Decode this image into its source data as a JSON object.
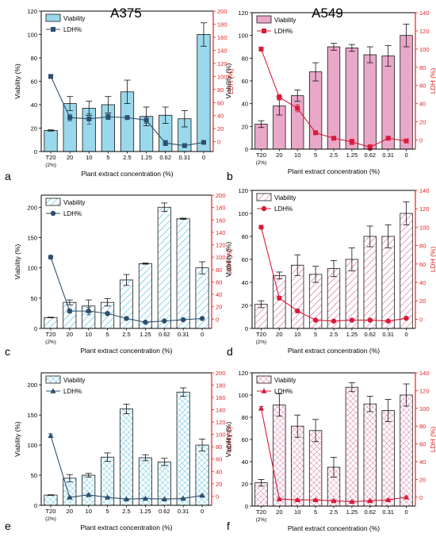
{
  "figure": {
    "column_titles": [
      "A375",
      "A549"
    ],
    "colors": {
      "viability_blue": "#9ad9ec",
      "viability_pink": "#e9a8c8",
      "ldh_blue": "#2e4f6e",
      "ldh_red": "#d81b3a",
      "axis_red": "#e8201f",
      "bar_edge": "#1a1a1a"
    }
  },
  "chart_data": [
    {
      "panel": "a",
      "type": "bar",
      "cell_line": "A375",
      "categories": [
        "T20\n(2%)",
        "20",
        "10",
        "5",
        "2.5",
        "1.25",
        "0.62",
        "0.31",
        "0"
      ],
      "xlabel": "Plant extract concentration (%)",
      "ylabel": "Viability (%)",
      "y2label": "LDH (%)",
      "ylim": [
        0,
        120
      ],
      "yticks": [
        0,
        20,
        40,
        60,
        80,
        100,
        120
      ],
      "y2lim": [
        -15,
        200
      ],
      "y2ticks": [
        0,
        20,
        40,
        60,
        80,
        100,
        120,
        140,
        160,
        180,
        200
      ],
      "legend": "top-left",
      "pattern": "solid",
      "series": [
        {
          "name": "Viability",
          "values": [
            18,
            41,
            37,
            40,
            51,
            30,
            31,
            28,
            100
          ],
          "errors": [
            0.5,
            6,
            6,
            7,
            10,
            8,
            7,
            7,
            10
          ]
        },
        {
          "name": "LDH%",
          "values": [
            100,
            37,
            35,
            38,
            37,
            33,
            -2,
            -6,
            -1
          ],
          "errors": [
            3,
            5,
            8,
            4,
            3,
            5,
            4,
            3,
            2
          ],
          "marker": "square"
        }
      ]
    },
    {
      "panel": "b",
      "type": "bar",
      "cell_line": "A549",
      "categories": [
        "T20\n(2%)",
        "20",
        "10",
        "5",
        "2.5",
        "1.25",
        "0.62",
        "0.31",
        "0"
      ],
      "xlabel": "Plant extract concentration (%)",
      "ylabel": "Viability (%)",
      "y2label": "LDH (%)",
      "ylim": [
        0,
        120
      ],
      "yticks": [
        0,
        20,
        40,
        60,
        80,
        100,
        120
      ],
      "y2lim": [
        -10,
        140
      ],
      "y2ticks": [
        0,
        20,
        40,
        60,
        80,
        100,
        120,
        140
      ],
      "legend": "top-left",
      "pattern": "solid",
      "series": [
        {
          "name": "Viability",
          "values": [
            22,
            38,
            47,
            68,
            90,
            89,
            83,
            82,
            100
          ],
          "errors": [
            3,
            8,
            5,
            8,
            3,
            3,
            7,
            9,
            10
          ]
        },
        {
          "name": "LDH%",
          "values": [
            100,
            47,
            35,
            8,
            2,
            -2,
            -8,
            2,
            -1
          ],
          "errors": [
            2,
            3,
            4,
            2,
            2,
            3,
            3,
            2,
            2
          ],
          "marker": "square"
        }
      ]
    },
    {
      "panel": "c",
      "type": "bar",
      "cell_line": "A375",
      "categories": [
        "T20\n(2%)",
        "20",
        "10",
        "5",
        "2.5",
        "1.25",
        "0.62",
        "0.31",
        "0"
      ],
      "xlabel": "Plant extract concentration (%)",
      "ylabel": "Viability (%)",
      "y2label": "LDH (%)",
      "ylim": [
        0,
        220
      ],
      "yticks": [
        0,
        50,
        100,
        150,
        200
      ],
      "y2lim": [
        -15,
        200
      ],
      "y2ticks": [
        0,
        20,
        40,
        60,
        80,
        100,
        120,
        140,
        160,
        180,
        200
      ],
      "legend": "top-left",
      "pattern": "slash",
      "series": [
        {
          "name": "Viability",
          "values": [
            18,
            43,
            37,
            43,
            80,
            107,
            200,
            181,
            100
          ],
          "errors": [
            0.5,
            4,
            10,
            6,
            9,
            1,
            7,
            1,
            10
          ]
        },
        {
          "name": "LDH%",
          "values": [
            100,
            13,
            13,
            9,
            1,
            -5,
            -3,
            -1,
            1
          ],
          "errors": [
            3,
            3,
            6,
            2,
            2,
            1,
            1,
            1,
            1
          ],
          "marker": "circle"
        }
      ]
    },
    {
      "panel": "d",
      "type": "bar",
      "cell_line": "A549",
      "categories": [
        "T20\n(2%)",
        "20",
        "10",
        "5",
        "2.5",
        "1.25",
        "0.62",
        "0.31",
        "0"
      ],
      "xlabel": "Plant extract concentration (%)",
      "ylabel": "Viability (%)",
      "y2label": "LDH (%)",
      "ylim": [
        0,
        120
      ],
      "yticks": [
        0,
        20,
        40,
        60,
        80,
        100,
        120
      ],
      "y2lim": [
        -10,
        140
      ],
      "y2ticks": [
        0,
        20,
        40,
        60,
        80,
        100,
        120,
        140
      ],
      "legend": "top-left",
      "pattern": "slash",
      "series": [
        {
          "name": "Viability",
          "values": [
            21,
            46,
            55,
            47,
            52,
            60,
            80,
            80,
            100
          ],
          "errors": [
            3,
            3,
            9,
            7,
            7,
            10,
            9,
            10,
            10
          ]
        },
        {
          "name": "LDH%",
          "values": [
            100,
            23,
            9,
            -1,
            -2,
            -1,
            -1,
            -2,
            1
          ],
          "errors": [
            2,
            2,
            2,
            1,
            1,
            1,
            1,
            1,
            1
          ],
          "marker": "circle"
        }
      ]
    },
    {
      "panel": "e",
      "type": "bar",
      "cell_line": "A375",
      "categories": [
        "T20\n(2%)",
        "20",
        "10",
        "5",
        "2.5",
        "1.25",
        "0.62",
        "0.31",
        "0"
      ],
      "xlabel": "Plant extract concentration (%)",
      "ylabel": "Viability (%)",
      "y2label": "LDH (%)",
      "ylim": [
        0,
        220
      ],
      "yticks": [
        0,
        50,
        100,
        150,
        200
      ],
      "y2lim": [
        -15,
        200
      ],
      "y2ticks": [
        0,
        20,
        40,
        60,
        80,
        100,
        120,
        140,
        160,
        180,
        200
      ],
      "legend": "top-left",
      "pattern": "crosshatch",
      "series": [
        {
          "name": "Viability",
          "values": [
            17,
            45,
            50,
            80,
            160,
            79,
            72,
            188,
            100
          ],
          "errors": [
            0.5,
            6,
            3,
            7,
            8,
            5,
            6,
            7,
            10
          ]
        },
        {
          "name": "LDH%",
          "values": [
            98,
            -2,
            2,
            -2,
            -5,
            -4,
            -5,
            -4,
            1
          ],
          "errors": [
            3,
            1,
            2,
            1,
            1,
            1,
            1,
            1,
            1
          ],
          "marker": "triangle"
        }
      ]
    },
    {
      "panel": "f",
      "type": "bar",
      "cell_line": "A549",
      "categories": [
        "T20\n(2%)",
        "20",
        "10",
        "5",
        "2.5",
        "1.25",
        "0.62",
        "0.31",
        "0"
      ],
      "xlabel": "Plant extract concentration (%)",
      "ylabel": "Viability (%)",
      "y2label": "LDH (%)",
      "ylim": [
        0,
        120
      ],
      "yticks": [
        0,
        20,
        40,
        60,
        80,
        100,
        120
      ],
      "y2lim": [
        -10,
        140
      ],
      "y2ticks": [
        0,
        20,
        40,
        60,
        80,
        100,
        120,
        140
      ],
      "legend": "top-left",
      "pattern": "crosshatch",
      "series": [
        {
          "name": "Viability",
          "values": [
            21,
            91,
            72,
            68,
            35,
            107,
            92,
            86,
            100
          ],
          "errors": [
            3,
            10,
            10,
            10,
            9,
            4,
            7,
            10,
            10
          ]
        },
        {
          "name": "LDH%",
          "values": [
            100,
            -2,
            -3,
            -3,
            -4,
            -5,
            -4,
            -3,
            0
          ],
          "errors": [
            2,
            1,
            1,
            1,
            1,
            1,
            1,
            1,
            1
          ],
          "marker": "triangle"
        }
      ]
    }
  ]
}
